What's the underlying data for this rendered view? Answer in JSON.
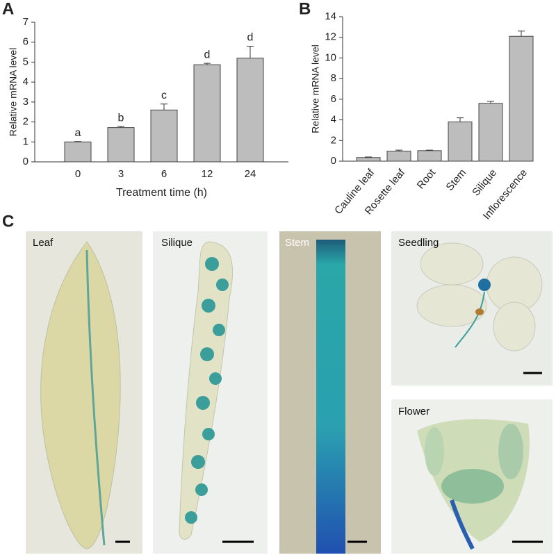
{
  "chart_data": [
    {
      "type": "bar",
      "panel": "A",
      "ylabel": "Relative mRNA level",
      "xlabel": "Treatment time (h)",
      "categories": [
        "0",
        "3",
        "6",
        "12",
        "24"
      ],
      "values": [
        1.0,
        1.72,
        2.6,
        4.87,
        5.2
      ],
      "errors": [
        0.02,
        0.05,
        0.3,
        0.07,
        0.6
      ],
      "annotations": [
        "a",
        "b",
        "c",
        "d",
        "d"
      ],
      "color": "#bdbdbd",
      "ylim": [
        0,
        7
      ],
      "yticks": [
        0,
        1,
        2,
        3,
        4,
        5,
        6,
        7
      ]
    },
    {
      "type": "bar",
      "panel": "B",
      "ylabel": "Relative mRNA level",
      "categories": [
        "Cauline leaf",
        "Rosette leaf",
        "Root",
        "Stem",
        "Silique",
        "Inflorescence"
      ],
      "values": [
        0.35,
        0.97,
        1.02,
        3.8,
        5.6,
        12.1
      ],
      "errors": [
        0.05,
        0.1,
        0.05,
        0.4,
        0.2,
        0.5
      ],
      "color": "#bdbdbd",
      "ylim": [
        0,
        14
      ],
      "yticks": [
        0,
        2,
        4,
        6,
        8,
        10,
        12,
        14
      ]
    }
  ],
  "photos": {
    "panel": "C",
    "labels": [
      "Leaf",
      "Silique",
      "Stem",
      "Seedling",
      "Flower"
    ]
  }
}
